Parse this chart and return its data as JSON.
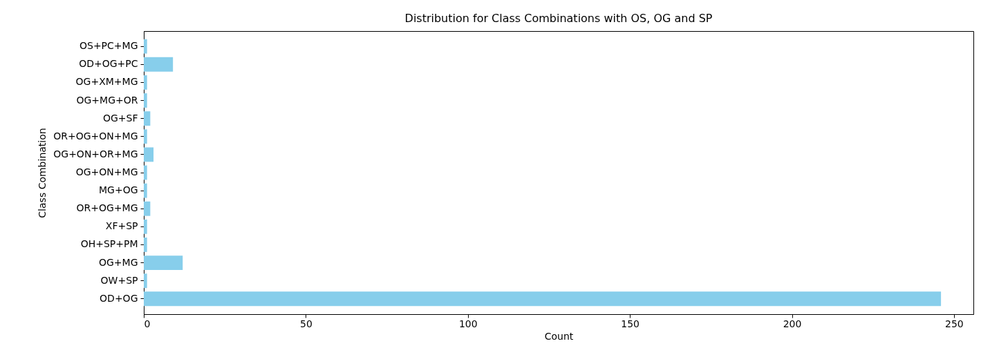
{
  "chart_data": {
    "type": "bar",
    "orientation": "horizontal",
    "title": "Distribution for Class Combinations with OS, OG and SP",
    "xlabel": "Count",
    "ylabel": "Class Combination",
    "categories": [
      "OS+PC+MG",
      "OD+OG+PC",
      "OG+XM+MG",
      "OG+MG+OR",
      "OG+SF",
      "OR+OG+ON+MG",
      "OG+ON+OR+MG",
      "OG+ON+MG",
      "MG+OG",
      "OR+OG+MG",
      "XF+SP",
      "OH+SP+PM",
      "OG+MG",
      "OW+SP",
      "OD+OG"
    ],
    "values": [
      1,
      9,
      1,
      1,
      2,
      1,
      3,
      1,
      1,
      2,
      1,
      1,
      12,
      1,
      246
    ],
    "color": "#87ceeb",
    "xlim": [
      0,
      256
    ],
    "xticks": [
      0,
      50,
      100,
      150,
      200,
      250
    ],
    "grid": false
  }
}
